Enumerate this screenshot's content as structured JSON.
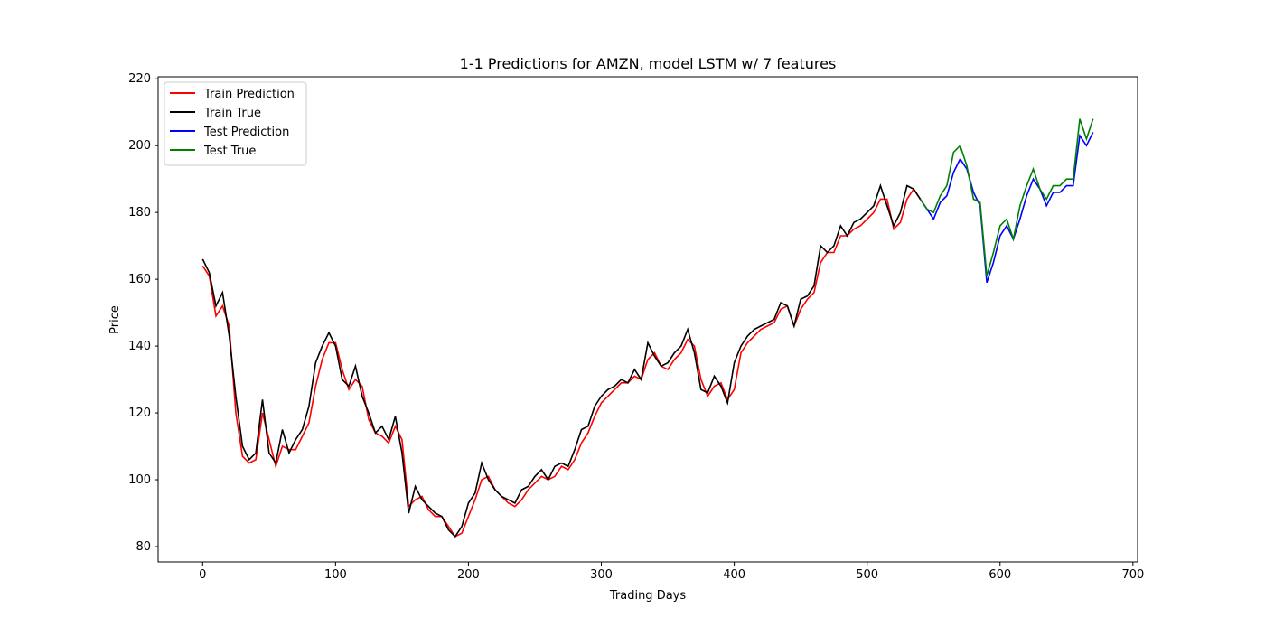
{
  "chart_data": {
    "type": "line",
    "title": "1-1 Predictions for AMZN, model LSTM w/ 7 features",
    "x_label": "Trading Days",
    "y_label": "Price",
    "xlim": [
      -33.5,
      703.5
    ],
    "ylim": [
      75.4,
      220.6
    ],
    "xticks": [
      0,
      100,
      200,
      300,
      400,
      500,
      600,
      700
    ],
    "yticks": [
      80,
      100,
      120,
      140,
      160,
      180,
      200,
      220
    ],
    "legend": "upper left",
    "series": [
      {
        "name": "Train Prediction",
        "color": "#ff0000",
        "x": [
          0,
          5,
          10,
          15,
          20,
          25,
          30,
          35,
          40,
          45,
          50,
          55,
          60,
          65,
          70,
          75,
          80,
          85,
          90,
          95,
          100,
          105,
          110,
          115,
          120,
          125,
          130,
          135,
          140,
          145,
          150,
          155,
          160,
          165,
          170,
          175,
          180,
          185,
          190,
          195,
          200,
          205,
          210,
          215,
          220,
          225,
          230,
          235,
          240,
          245,
          250,
          255,
          260,
          265,
          270,
          275,
          280,
          285,
          290,
          295,
          300,
          305,
          310,
          315,
          320,
          325,
          330,
          335,
          340,
          345,
          350,
          355,
          360,
          365,
          370,
          375,
          380,
          385,
          390,
          395,
          400,
          405,
          410,
          415,
          420,
          425,
          430,
          435,
          440,
          445,
          450,
          455,
          460,
          465,
          470,
          475,
          480,
          485,
          490,
          495,
          500,
          505,
          510,
          515,
          520,
          525,
          530,
          535,
          540
        ],
        "values": [
          164,
          161,
          149,
          152,
          146,
          120,
          107,
          105,
          106,
          120,
          112,
          104,
          110,
          109,
          109,
          113,
          117,
          128,
          136,
          141,
          141,
          133,
          127,
          130,
          128,
          118,
          114,
          113,
          111,
          116,
          112,
          92,
          94,
          95,
          91,
          89,
          89,
          86,
          83,
          84,
          89,
          94,
          100,
          101,
          97,
          95,
          93,
          92,
          94,
          97,
          99,
          101,
          100,
          101,
          104,
          103,
          106,
          111,
          114,
          119,
          123,
          125,
          127,
          129,
          129,
          131,
          130,
          136,
          138,
          134,
          133,
          136,
          138,
          142,
          140,
          130,
          125,
          128,
          129,
          124,
          127,
          138,
          141,
          143,
          145,
          146,
          147,
          151,
          152,
          146,
          151,
          154,
          156,
          165,
          168,
          168,
          173,
          173,
          175,
          176,
          178,
          180,
          184,
          184,
          175,
          177,
          184,
          187,
          184
        ]
      },
      {
        "name": "Train True",
        "color": "#000000",
        "x": [
          0,
          5,
          10,
          15,
          20,
          25,
          30,
          35,
          40,
          45,
          50,
          55,
          60,
          65,
          70,
          75,
          80,
          85,
          90,
          95,
          100,
          105,
          110,
          115,
          120,
          125,
          130,
          135,
          140,
          145,
          150,
          155,
          160,
          165,
          170,
          175,
          180,
          185,
          190,
          195,
          200,
          205,
          210,
          215,
          220,
          225,
          230,
          235,
          240,
          245,
          250,
          255,
          260,
          265,
          270,
          275,
          280,
          285,
          290,
          295,
          300,
          305,
          310,
          315,
          320,
          325,
          330,
          335,
          340,
          345,
          350,
          355,
          360,
          365,
          370,
          375,
          380,
          385,
          390,
          395,
          400,
          405,
          410,
          415,
          420,
          425,
          430,
          435,
          440,
          445,
          450,
          455,
          460,
          465,
          470,
          475,
          480,
          485,
          490,
          495,
          500,
          505,
          510,
          515,
          520,
          525,
          530,
          535,
          540
        ],
        "values": [
          166,
          162,
          152,
          156,
          143,
          125,
          110,
          106,
          108,
          124,
          108,
          105,
          115,
          108,
          112,
          115,
          122,
          135,
          140,
          144,
          140,
          130,
          128,
          134,
          125,
          120,
          114,
          116,
          112,
          119,
          108,
          90,
          98,
          94,
          92,
          90,
          89,
          85,
          83,
          86,
          93,
          96,
          105,
          100,
          97,
          95,
          94,
          93,
          97,
          98,
          101,
          103,
          100,
          104,
          105,
          104,
          109,
          115,
          116,
          122,
          125,
          127,
          128,
          130,
          129,
          133,
          130,
          141,
          137,
          134,
          135,
          138,
          140,
          145,
          138,
          127,
          126,
          131,
          128,
          123,
          135,
          140,
          143,
          145,
          146,
          147,
          148,
          153,
          152,
          146,
          154,
          155,
          158,
          170,
          168,
          170,
          176,
          173,
          177,
          178,
          180,
          182,
          188,
          182,
          176,
          180,
          188,
          187,
          184
        ]
      },
      {
        "name": "Test Prediction",
        "color": "#0000ff",
        "x": [
          540,
          545,
          550,
          555,
          560,
          565,
          570,
          575,
          580,
          585,
          590,
          595,
          600,
          605,
          610,
          615,
          620,
          625,
          630,
          635,
          640,
          645,
          650,
          655,
          660,
          665,
          670
        ],
        "values": [
          184,
          181,
          178,
          183,
          185,
          192,
          196,
          193,
          186,
          182,
          159,
          165,
          173,
          176,
          172,
          178,
          185,
          190,
          187,
          182,
          186,
          186,
          188,
          188,
          203,
          200,
          204
        ]
      },
      {
        "name": "Test True",
        "color": "#008000",
        "x": [
          540,
          545,
          550,
          555,
          560,
          565,
          570,
          575,
          580,
          585,
          590,
          595,
          600,
          605,
          610,
          615,
          620,
          625,
          630,
          635,
          640,
          645,
          650,
          655,
          660,
          665,
          670
        ],
        "values": [
          184,
          181,
          180,
          185,
          188,
          198,
          200,
          194,
          184,
          183,
          161,
          168,
          176,
          178,
          172,
          182,
          188,
          193,
          187,
          184,
          188,
          188,
          190,
          190,
          208,
          202,
          208
        ]
      }
    ]
  }
}
